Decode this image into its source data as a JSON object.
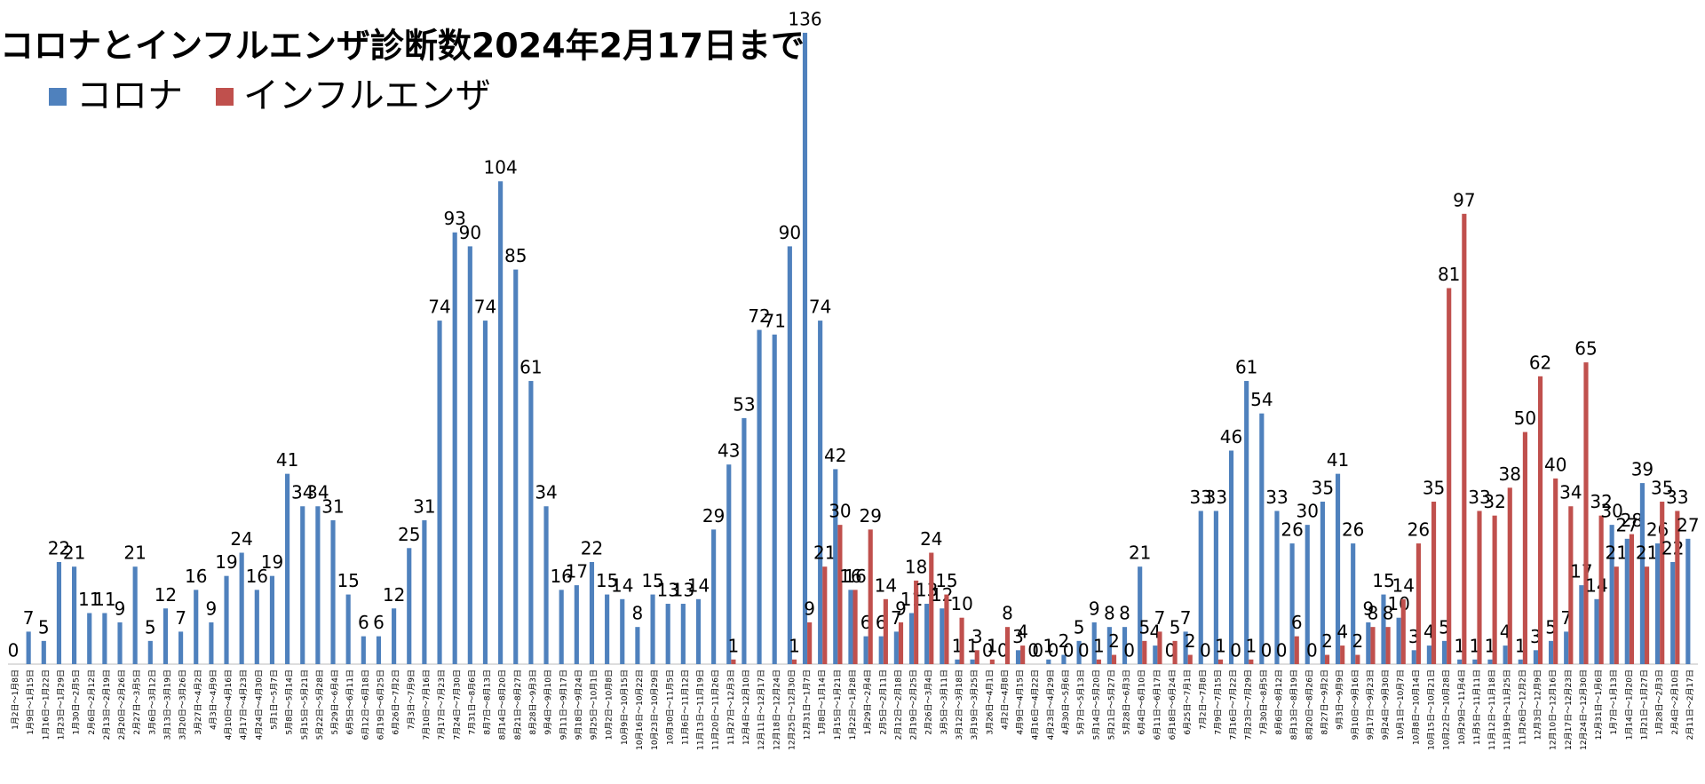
{
  "chart_data": {
    "type": "bar",
    "title": "コロナとインフルエンザ診断数2024年2月17日まで",
    "categories": [
      "1月2日～1月8日",
      "1月9日～1月15日",
      "1月16日～1月22日",
      "1月23日～1月29日",
      "1月30日～2月5日",
      "2月6日～2月12日",
      "2月13日～2月19日",
      "2月20日～2月26日",
      "2月27日～3月5日",
      "3月6日～3月12日",
      "3月13日～3月19日",
      "3月20日～3月26日",
      "3月27日～4月2日",
      "4月3日～4月9日",
      "4月10日～4月16日",
      "4月17日～4月23日",
      "4月24日～4月30日",
      "5月1日～5月7日",
      "5月8日～5月14日",
      "5月15日～5月21日",
      "5月22日～5月28日",
      "5月29日～6月4日",
      "6月5日～6月11日",
      "6月12日～6月18日",
      "6月19日～6月25日",
      "6月26日～7月2日",
      "7月3日～7月9日",
      "7月10日～7月16日",
      "7月17日～7月23日",
      "7月24日～7月30日",
      "7月31日～8月6日",
      "8月7日～8月13日",
      "8月14日～8月20日",
      "8月21日～8月27日",
      "8月28日～9月3日",
      "9月4日～9月10日",
      "9月11日～9月17日",
      "9月18日～9月24日",
      "9月25日～10月1日",
      "10月2日～10月8日",
      "10月9日～10月15日",
      "10月16日～10月22日",
      "10月23日～10月29日",
      "10月30日～11月5日",
      "11月6日～11月12日",
      "11月13日～11月19日",
      "11月20日～11月26日",
      "11月27日～12月3日",
      "12月4日～12月10日",
      "12月11日～12月17日",
      "12月18日～12月24日",
      "12月25日～12月30日",
      "12月31日～1月7日",
      "1月8日～1月14日",
      "1月15日～1月21日",
      "1月22日～1月28日",
      "1月29日～2月4日",
      "2月5日～2月11日",
      "2月12日～2月18日",
      "2月19日～2月25日",
      "2月26日～3月4日",
      "3月5日～3月11日",
      "3月12日～3月18日",
      "3月19日～3月25日",
      "3月26日～4月1日",
      "4月2日～4月8日",
      "4月9日～4月15日",
      "4月16日～4月22日",
      "4月23日～4月29日",
      "4月30日～5月6日",
      "5月7日～5月13日",
      "5月14日～5月20日",
      "5月21日～5月27日",
      "5月28日～6月3日",
      "6月4日～6月10日",
      "6月11日～6月17日",
      "6月18日～6月24日",
      "6月25日～7月1日",
      "7月2日～7月8日",
      "7月9日～7月15日",
      "7月16日～7月22日",
      "7月23日～7月29日",
      "7月30日～8月5日",
      "8月6日～8月12日",
      "8月13日～8月19日",
      "8月20日～8月26日",
      "8月27日～9月2日",
      "9月3日～9月9日",
      "9月10日～9月16日",
      "9月17日～9月23日",
      "9月24日～9月30日",
      "10月1日～10月7日",
      "10月8日～10月14日",
      "10月15日～10月21日",
      "10月22日～10月28日",
      "10月29日～11月4日",
      "11月5日～11月11日",
      "11月12日～11月18日",
      "11月19日～11月25日",
      "11月26日～12月2日",
      "12月3日～12月9日",
      "12月10日～12月16日",
      "12月17日～12月23日",
      "12月24日～12月30日",
      "12月31日～1月6日",
      "1月7日～1月13日",
      "1月14日～1月20日",
      "1月21日～1月27日",
      "1月28日～2月3日",
      "2月4日～2月10日",
      "2月11日～2月17日"
    ],
    "series": [
      {
        "name": "コロナ",
        "color": "#4f81bd",
        "values": [
          0,
          7,
          5,
          22,
          21,
          11,
          11,
          9,
          21,
          5,
          12,
          7,
          16,
          9,
          19,
          24,
          16,
          19,
          41,
          34,
          34,
          31,
          15,
          6,
          6,
          12,
          25,
          31,
          74,
          93,
          90,
          74,
          104,
          85,
          61,
          34,
          16,
          17,
          22,
          15,
          14,
          8,
          15,
          13,
          13,
          14,
          29,
          43,
          53,
          72,
          71,
          90,
          136,
          74,
          42,
          16,
          6,
          6,
          7,
          11,
          13,
          12,
          1,
          1,
          0,
          0,
          3,
          0,
          1,
          2,
          5,
          9,
          8,
          8,
          21,
          4,
          0,
          7,
          33,
          33,
          46,
          61,
          54,
          33,
          26,
          30,
          35,
          41,
          26,
          9,
          15,
          10,
          3,
          4,
          5,
          1,
          1,
          1,
          4,
          1,
          3,
          5,
          7,
          17,
          14,
          30,
          27,
          39,
          26,
          22,
          27
        ]
      },
      {
        "name": "インフルエンザ",
        "color": "#c0504d",
        "values": [
          null,
          null,
          null,
          null,
          null,
          null,
          null,
          null,
          null,
          null,
          null,
          null,
          null,
          null,
          null,
          null,
          null,
          null,
          null,
          null,
          null,
          null,
          null,
          null,
          null,
          null,
          null,
          null,
          null,
          null,
          null,
          null,
          null,
          null,
          null,
          null,
          null,
          null,
          null,
          null,
          null,
          null,
          null,
          null,
          null,
          null,
          null,
          1,
          null,
          null,
          null,
          1,
          9,
          21,
          30,
          16,
          29,
          14,
          9,
          18,
          24,
          15,
          10,
          3,
          1,
          8,
          4,
          0,
          0,
          0,
          0,
          1,
          2,
          0,
          5,
          7,
          5,
          2,
          0,
          1,
          0,
          1,
          0,
          0,
          6,
          0,
          2,
          4,
          2,
          8,
          8,
          14,
          26,
          35,
          81,
          97,
          33,
          32,
          38,
          50,
          62,
          40,
          34,
          65,
          32,
          21,
          28,
          21,
          35,
          33,
          null
        ]
      }
    ],
    "ylim": [
      0,
      140
    ]
  }
}
